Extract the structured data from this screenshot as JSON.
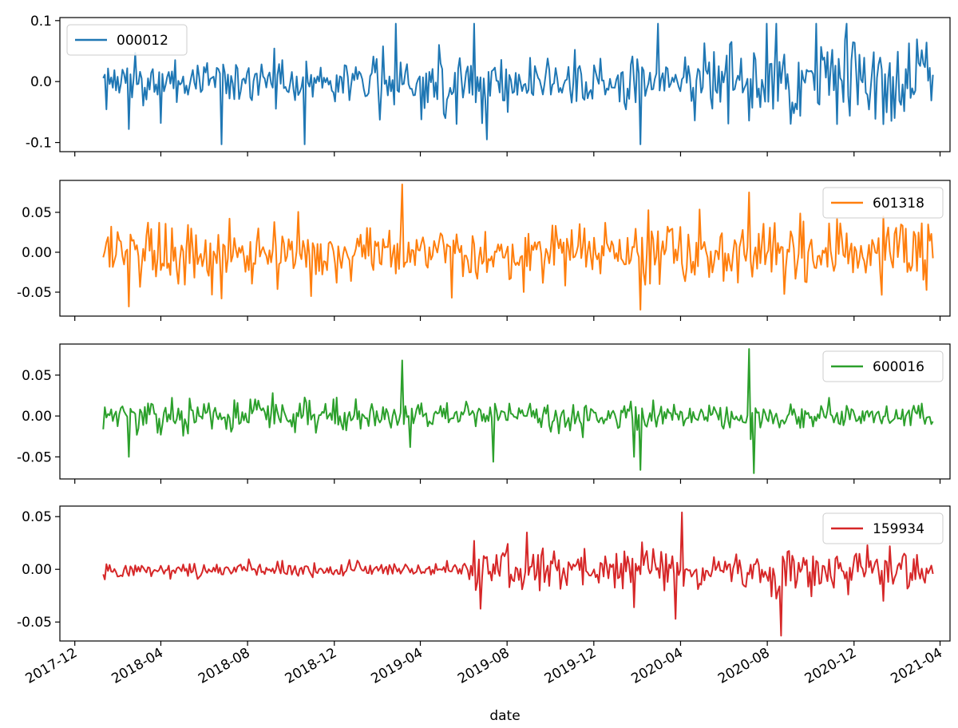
{
  "chart_data": {
    "type": "line",
    "xlabel": "date",
    "x_ticks": [
      "2017-12",
      "2018-04",
      "2018-08",
      "2018-12",
      "2019-04",
      "2019-08",
      "2019-12",
      "2020-04",
      "2020-08",
      "2020-12",
      "2021-04"
    ],
    "x_start": "2018-01-10",
    "x_end": "2021-03-22",
    "x_range": [
      "2017-11-10",
      "2021-04-15"
    ],
    "panels": [
      {
        "series_name": "000012",
        "color": "#1f77b4",
        "legend_loc": "upper-left",
        "ylim": [
          -0.115,
          0.105
        ],
        "yticks": [
          0.1,
          0.0,
          -0.1
        ],
        "yticklabels": [
          "0.1",
          "0.0",
          "-0.1"
        ],
        "base_amp": 0.018,
        "regimes": [
          [
            0.0,
            0.11,
            1.0
          ],
          [
            0.11,
            0.33,
            1.0
          ],
          [
            0.33,
            0.66,
            1.5
          ],
          [
            0.66,
            0.7,
            0.9
          ],
          [
            0.7,
            1.0,
            2.1
          ]
        ],
        "spikes": [
          [
            0.03,
            -0.078
          ],
          [
            0.07,
            -0.068
          ],
          [
            0.143,
            -0.103
          ],
          [
            0.243,
            -0.103
          ],
          [
            0.352,
            0.095
          ],
          [
            0.447,
            0.095
          ],
          [
            0.462,
            -0.095
          ],
          [
            0.647,
            -0.103
          ],
          [
            0.668,
            0.095
          ],
          [
            0.8,
            0.095
          ],
          [
            0.812,
            0.095
          ],
          [
            0.86,
            0.095
          ],
          [
            0.895,
            0.095
          ],
          [
            0.94,
            -0.07
          ]
        ]
      },
      {
        "series_name": "601318",
        "color": "#ff7f0e",
        "legend_loc": "upper-right",
        "ylim": [
          -0.08,
          0.09
        ],
        "yticks": [
          0.05,
          0.0,
          -0.05
        ],
        "yticklabels": [
          "0.05",
          "0.00",
          "-0.05"
        ],
        "base_amp": 0.02,
        "regimes": [
          [
            0.0,
            0.3,
            1.0
          ],
          [
            0.3,
            0.64,
            0.9
          ],
          [
            0.64,
            1.0,
            1.15
          ]
        ],
        "spikes": [
          [
            0.03,
            -0.068
          ],
          [
            0.143,
            -0.058
          ],
          [
            0.25,
            -0.055
          ],
          [
            0.36,
            0.085
          ],
          [
            0.42,
            -0.057
          ],
          [
            0.647,
            -0.072
          ],
          [
            0.778,
            0.075
          ],
          [
            0.94,
            0.045
          ]
        ]
      },
      {
        "series_name": "600016",
        "color": "#2ca02c",
        "legend_loc": "upper-right",
        "ylim": [
          -0.077,
          0.088
        ],
        "yticks": [
          0.05,
          0.0,
          -0.05
        ],
        "yticklabels": [
          "0.05",
          "0.00",
          "-0.05"
        ],
        "base_amp": 0.009,
        "regimes": [
          [
            0.0,
            0.3,
            1.2
          ],
          [
            0.3,
            1.0,
            0.85
          ]
        ],
        "spikes": [
          [
            0.03,
            -0.05
          ],
          [
            0.36,
            0.068
          ],
          [
            0.37,
            -0.038
          ],
          [
            0.47,
            -0.056
          ],
          [
            0.64,
            -0.05
          ],
          [
            0.647,
            -0.066
          ],
          [
            0.778,
            0.082
          ],
          [
            0.784,
            -0.07
          ]
        ]
      },
      {
        "series_name": "159934",
        "color": "#d62728",
        "legend_loc": "upper-right",
        "ylim": [
          -0.068,
          0.06
        ],
        "yticks": [
          0.05,
          0.0,
          -0.05
        ],
        "yticklabels": [
          "0.05",
          "0.00",
          "-0.05"
        ],
        "base_amp": 0.004,
        "regimes": [
          [
            0.0,
            0.44,
            0.9
          ],
          [
            0.44,
            0.55,
            3.2
          ],
          [
            0.55,
            0.64,
            2.2
          ],
          [
            0.64,
            0.68,
            3.2
          ],
          [
            0.68,
            0.79,
            2.0
          ],
          [
            0.79,
            0.82,
            4.0
          ],
          [
            0.82,
            1.0,
            2.5
          ]
        ],
        "spikes": [
          [
            0.51,
            0.035
          ],
          [
            0.64,
            -0.036
          ],
          [
            0.69,
            -0.047
          ],
          [
            0.697,
            0.054
          ],
          [
            0.816,
            -0.063
          ],
          [
            0.94,
            -0.03
          ]
        ]
      }
    ]
  }
}
